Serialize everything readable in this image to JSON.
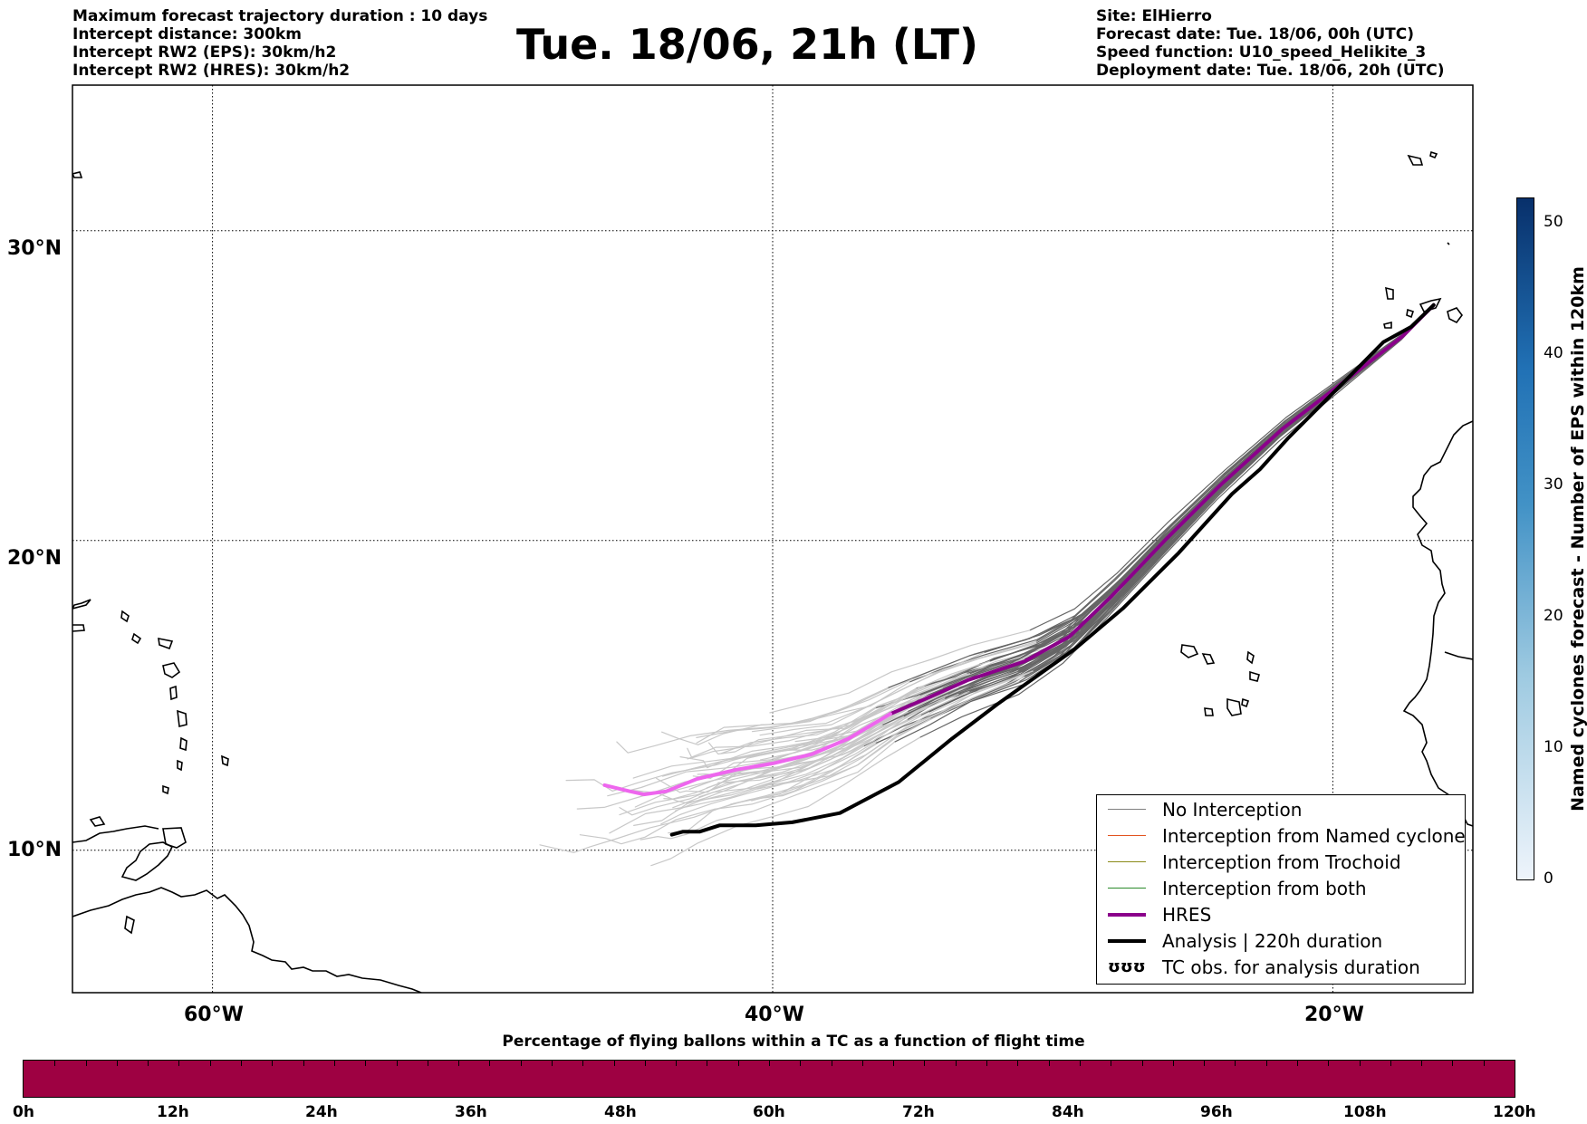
{
  "header_left": [
    "Maximum forecast trajectory duration : 10 days",
    "Intercept distance: 300km",
    "Intercept RW2 (EPS):  30km/h2",
    "Intercept RW2 (HRES): 30km/h2"
  ],
  "title": "Tue. 18/06, 21h (LT)",
  "header_right": [
    "Site: ElHierro",
    "Forecast date: Tue. 18/06, 00h (UTC)",
    "Speed function: U10_speed_Helikite_3",
    "Deployment date: Tue. 18/06, 20h (UTC)"
  ],
  "map": {
    "lat_labels": [
      "30°N",
      "20°N",
      "10°N"
    ],
    "lon_labels": [
      "60°W",
      "40°W",
      "20°W"
    ],
    "extent": {
      "lon_min": -65,
      "lon_max": -15,
      "lat_min": 5.4,
      "lat_max": 34.7
    },
    "grid_lats": [
      30,
      20,
      10
    ],
    "grid_lons": [
      -60,
      -40,
      -20
    ],
    "colors": {
      "no_interception": "#666666",
      "eps_early": "#c8c8c8",
      "hres": "#8b008b",
      "hres_early": "#ee66ee",
      "analysis": "#000000"
    },
    "hres_track": [
      [
        -16.4,
        27.6
      ],
      [
        -17.5,
        26.6
      ],
      [
        -19.5,
        25.2
      ],
      [
        -21.8,
        23.6
      ],
      [
        -24,
        21.8
      ],
      [
        -26,
        20
      ],
      [
        -27.9,
        18.2
      ],
      [
        -29.4,
        16.9
      ],
      [
        -31,
        16.1
      ],
      [
        -33,
        15.5
      ],
      [
        -34.5,
        14.9
      ],
      [
        -35.8,
        14.4
      ],
      [
        -37.3,
        13.6
      ],
      [
        -38.6,
        13.1
      ],
      [
        -40,
        12.8
      ],
      [
        -41.3,
        12.6
      ],
      [
        -42.7,
        12.3
      ],
      [
        -43.8,
        11.9
      ],
      [
        -44.6,
        11.8
      ],
      [
        -45.1,
        11.9
      ],
      [
        -46,
        12.1
      ]
    ],
    "analysis_track": [
      [
        -16.4,
        27.6
      ],
      [
        -17.2,
        26.9
      ],
      [
        -18.2,
        26.4
      ],
      [
        -19.4,
        25.3
      ],
      [
        -20.5,
        24.3
      ],
      [
        -21.6,
        23.3
      ],
      [
        -22.6,
        22.3
      ],
      [
        -23.6,
        21.5
      ],
      [
        -25.5,
        19.6
      ],
      [
        -27.5,
        17.8
      ],
      [
        -29.2,
        16.5
      ],
      [
        -30.6,
        15.6
      ],
      [
        -32,
        14.7
      ],
      [
        -33.6,
        13.6
      ],
      [
        -35.5,
        12.2
      ],
      [
        -37.6,
        11.2
      ],
      [
        -39.3,
        10.9
      ],
      [
        -40.6,
        10.8
      ],
      [
        -41.9,
        10.8
      ],
      [
        -42.6,
        10.6
      ],
      [
        -43.2,
        10.6
      ],
      [
        -43.6,
        10.5
      ]
    ]
  },
  "legend": [
    {
      "label": "No Interception",
      "color": "#808080",
      "width": 1.5
    },
    {
      "label": "Interception from Named cyclone",
      "color": "#e2541f",
      "width": 1.5
    },
    {
      "label": "Interception from Trochoid",
      "color": "#8a8a1a",
      "width": 1.5
    },
    {
      "label": "Interception from both",
      "color": "#2a8a2a",
      "width": 1.5
    },
    {
      "label": "HRES",
      "color": "#8b008b",
      "width": 4
    },
    {
      "label": "Analysis | 220h duration",
      "color": "#000000",
      "width": 4
    },
    {
      "label": "TC obs. for analysis duration",
      "symbol": "ʊʊʊ"
    }
  ],
  "colorbar": {
    "title": "Named cyclones forecast - Number of EPS within 120km",
    "ticks": [
      "0",
      "10",
      "20",
      "30",
      "40",
      "50"
    ],
    "min": 0,
    "max": 52,
    "colors": [
      "#eef4fb",
      "#08306b"
    ]
  },
  "bottom_bar": {
    "title": "Percentage of flying ballons within a TC as a function of flight time",
    "color": "#9e0142",
    "ticks": [
      "0h",
      "12h",
      "24h",
      "36h",
      "48h",
      "60h",
      "72h",
      "84h",
      "96h",
      "108h",
      "120h"
    ]
  }
}
